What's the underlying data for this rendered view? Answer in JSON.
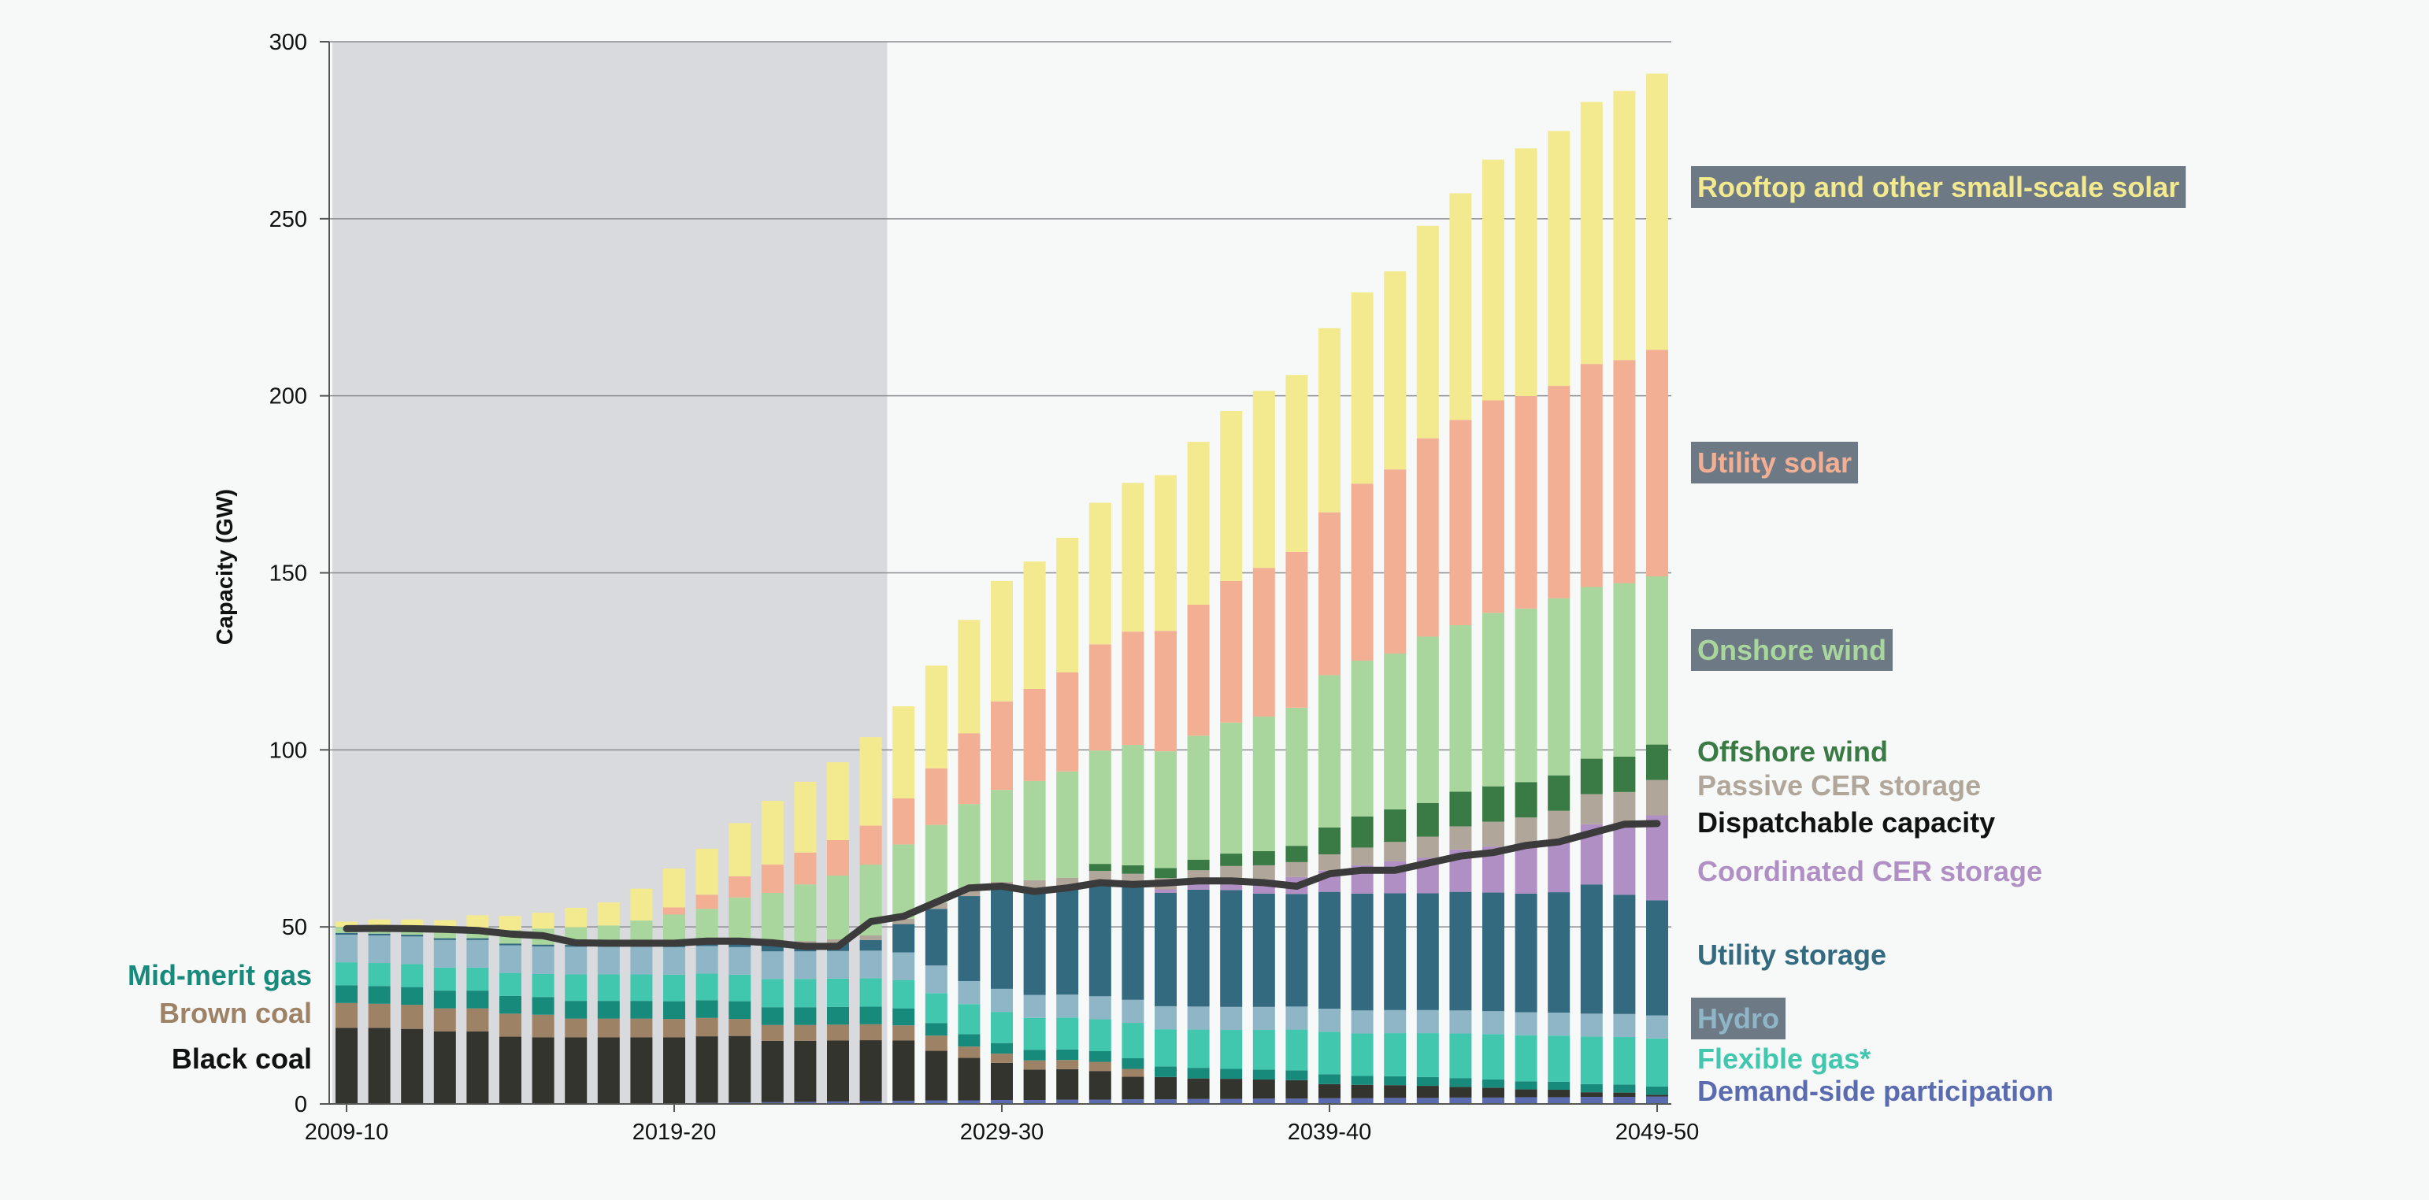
{
  "chart_data": {
    "type": "bar",
    "stacked": true,
    "ylabel": "Capacity (GW)",
    "ylim": [
      0,
      300
    ],
    "yticks": [
      0,
      50,
      100,
      150,
      200,
      250,
      300
    ],
    "xticks": [
      "2009-10",
      "2019-20",
      "2029-30",
      "2039-40",
      "2049-50"
    ],
    "categories": [
      "2009-10",
      "2010-11",
      "2011-12",
      "2012-13",
      "2013-14",
      "2014-15",
      "2015-16",
      "2016-17",
      "2017-18",
      "2018-19",
      "2019-20",
      "2020-21",
      "2021-22",
      "2022-23",
      "2023-24",
      "2024-25",
      "2025-26",
      "2026-27",
      "2027-28",
      "2028-29",
      "2029-30",
      "2030-31",
      "2031-32",
      "2032-33",
      "2033-34",
      "2034-35",
      "2035-36",
      "2036-37",
      "2037-38",
      "2038-39",
      "2039-40",
      "2040-41",
      "2041-42",
      "2042-43",
      "2043-44",
      "2044-45",
      "2045-46",
      "2046-47",
      "2047-48",
      "2048-49",
      "2049-50"
    ],
    "historical_range": [
      "2009-10",
      "2025-26"
    ],
    "series": [
      {
        "name": "Demand-side participation",
        "color": "#5a6bb0",
        "values": [
          0,
          0,
          0,
          0,
          0,
          0,
          0,
          0,
          0,
          0,
          0,
          0.3,
          0.4,
          0.5,
          0.6,
          0.7,
          0.8,
          0.9,
          1,
          1,
          1.1,
          1.1,
          1.2,
          1.2,
          1.3,
          1.3,
          1.4,
          1.4,
          1.5,
          1.5,
          1.6,
          1.6,
          1.7,
          1.7,
          1.8,
          1.8,
          1.9,
          1.9,
          2,
          2,
          2.1
        ]
      },
      {
        "name": "Black coal",
        "color": "#34342f",
        "values": [
          21.5,
          21.5,
          21.2,
          20.5,
          20.5,
          19,
          18.8,
          18.8,
          18.8,
          18.8,
          18.8,
          18.8,
          18.8,
          17.3,
          17.2,
          17.2,
          17.2,
          17,
          14,
          12,
          10.5,
          8.6,
          8.6,
          8.1,
          6.4,
          6.3,
          5.8,
          5.7,
          5.4,
          5.2,
          4,
          3.8,
          3.6,
          3.4,
          3,
          2.8,
          2.2,
          2.1,
          1.3,
          1.2,
          0.5
        ]
      },
      {
        "name": "Brown coal",
        "color": "#9e8266",
        "values": [
          7,
          6.8,
          6.8,
          6.5,
          6.5,
          6.5,
          6.4,
          5.3,
          5.3,
          5.3,
          5.2,
          5.2,
          4.8,
          4.5,
          4.5,
          4.5,
          4.5,
          4.3,
          4.3,
          3.2,
          2.6,
          2.6,
          2.6,
          2.6,
          2.2,
          0,
          0,
          0,
          0,
          0,
          0,
          0,
          0,
          0,
          0,
          0,
          0,
          0,
          0,
          0,
          0
        ]
      },
      {
        "name": "Mid-merit gas",
        "color": "#178a7c",
        "values": [
          5,
          5,
          5,
          5,
          5,
          5,
          5,
          5,
          5,
          5,
          5,
          5,
          5,
          5,
          5,
          5,
          5,
          4.8,
          3.5,
          3.5,
          3,
          3,
          3,
          3,
          3,
          3,
          3,
          2.8,
          2.8,
          2.8,
          2.8,
          2.5,
          2.5,
          2.5,
          2.5,
          2.3,
          2.3,
          2.3,
          2.3,
          2.3,
          2.3
        ]
      },
      {
        "name": "Flexible gas*",
        "color": "#42c7af",
        "values": [
          6.5,
          6.5,
          6.5,
          6.5,
          6.5,
          6.5,
          6.5,
          7.5,
          7.5,
          7.5,
          7.5,
          7.5,
          7.5,
          8,
          8,
          8,
          8,
          8,
          8.5,
          8.5,
          8.8,
          9,
          9,
          9,
          10,
          10.5,
          10.8,
          11,
          11.2,
          11.5,
          12,
          12,
          12.2,
          12.4,
          12.6,
          12.8,
          13,
          13,
          13.4,
          13.4,
          13.6
        ]
      },
      {
        "name": "Hydro",
        "color": "#8fb6c7",
        "values": [
          7.8,
          7.8,
          7.8,
          7.8,
          7.8,
          7.8,
          7.8,
          7.8,
          7.8,
          7.8,
          7.8,
          7.8,
          7.8,
          7.8,
          7.8,
          7.8,
          7.8,
          7.8,
          7.8,
          6.5,
          6.5,
          6.5,
          6.5,
          6.5,
          6.5,
          6.5,
          6.5,
          6.5,
          6.5,
          6.5,
          6.5,
          6.5,
          6.5,
          6.5,
          6.5,
          6.5,
          6.5,
          6.5,
          6.5,
          6.5,
          6.5
        ]
      },
      {
        "name": "Utility storage",
        "color": "#336a80",
        "values": [
          0.5,
          0.5,
          0.5,
          0.5,
          0.5,
          0.5,
          0.5,
          0.5,
          0.5,
          0.8,
          1,
          1.2,
          1.5,
          1.8,
          2,
          2.2,
          3,
          8,
          16,
          24,
          28,
          30,
          30,
          32,
          31.8,
          32,
          33,
          33,
          32,
          31.8,
          33,
          33,
          33,
          33,
          33.5,
          33.5,
          33.5,
          34,
          36.5,
          33.7,
          32.5
        ]
      },
      {
        "name": "Coordinated CER storage",
        "color": "#b08fc4",
        "values": [
          0,
          0,
          0,
          0,
          0,
          0,
          0,
          0,
          0,
          0,
          0,
          0,
          0,
          0,
          0,
          0,
          0,
          0,
          0,
          0,
          0,
          0,
          0.4,
          0.6,
          0.8,
          1,
          2,
          3,
          4,
          4.8,
          6,
          8,
          9,
          10,
          12,
          13,
          14,
          15,
          17,
          20,
          24
        ]
      },
      {
        "name": "Passive CER storage",
        "color": "#b0a699",
        "values": [
          0,
          0,
          0,
          0,
          0,
          0,
          0,
          0,
          0,
          0.1,
          0.2,
          0.3,
          0.5,
          0.7,
          0.9,
          1.1,
          1.3,
          1.5,
          1.7,
          2,
          2.2,
          2.4,
          2.6,
          2.8,
          3,
          3.2,
          3.5,
          3.8,
          4,
          4.2,
          4.6,
          5,
          5.5,
          6,
          6.5,
          7,
          7.5,
          8,
          8.5,
          9,
          10
        ]
      },
      {
        "name": "Offshore wind",
        "color": "#3a7a45",
        "values": [
          0,
          0,
          0,
          0,
          0,
          0,
          0,
          0,
          0,
          0,
          0,
          0,
          0,
          0,
          0,
          0,
          0,
          0,
          0,
          0,
          0,
          0,
          0,
          2,
          2.4,
          2.8,
          3,
          3.5,
          4,
          4.6,
          7.6,
          8.8,
          9.2,
          9.5,
          9.8,
          10,
          10,
          10,
          10,
          10,
          10
        ]
      },
      {
        "name": "Onshore wind",
        "color": "#a8d69c",
        "values": [
          1.7,
          2,
          2,
          2.3,
          3,
          3.8,
          4.5,
          5,
          5.5,
          6.5,
          8,
          9,
          12,
          14,
          16,
          18,
          20,
          21,
          22,
          24,
          26,
          28,
          30,
          32,
          34,
          33,
          35,
          37,
          38,
          39,
          43,
          44,
          44,
          47,
          47,
          49,
          49,
          50,
          48.5,
          49,
          47.5
        ]
      },
      {
        "name": "Utility solar",
        "color": "#f2af94",
        "values": [
          0,
          0,
          0,
          0,
          0,
          0,
          0,
          0,
          0,
          0,
          2,
          4,
          6,
          8,
          9,
          10,
          11,
          13,
          16,
          20,
          25,
          26,
          28,
          30,
          32,
          34,
          37,
          40,
          42,
          44,
          46,
          50,
          52,
          56,
          58,
          60,
          60,
          60,
          63,
          63,
          64
        ]
      },
      {
        "name": "Rooftop and other small-scale solar",
        "color": "#f3ea8f",
        "values": [
          1.5,
          2,
          2.3,
          2.8,
          3.5,
          4,
          4.5,
          5.5,
          6.5,
          9,
          11,
          13,
          15,
          18,
          20,
          22,
          25,
          26,
          29,
          32,
          34,
          36,
          38,
          40,
          42,
          44,
          46,
          48,
          50,
          50,
          52,
          54,
          56,
          60,
          64,
          68,
          70,
          72,
          74,
          76,
          78
        ]
      }
    ],
    "line": {
      "name": "Dispatchable capacity",
      "color": "#3b3b3b",
      "values": [
        49.5,
        49.6,
        49.5,
        49.3,
        49,
        48,
        47.5,
        45.5,
        45.4,
        45.4,
        45.4,
        46,
        46,
        45.5,
        44.5,
        44.5,
        51.5,
        53,
        57,
        61,
        61.5,
        60,
        61,
        62.5,
        62,
        62.4,
        63,
        63,
        62.5,
        61.5,
        65,
        66,
        66,
        68,
        70,
        71,
        73,
        74,
        76.5,
        79,
        79.2
      ]
    },
    "labels": [
      {
        "text": "Rooftop and other small-scale solar",
        "color": "#f3ea8f",
        "boxed": true
      },
      {
        "text": "Utility solar",
        "color": "#f2af94",
        "boxed": true
      },
      {
        "text": "Onshore wind",
        "color": "#a8d69c",
        "boxed": true
      },
      {
        "text": "Offshore wind",
        "color": "#3a7a45",
        "boxed": false
      },
      {
        "text": "Passive CER storage",
        "color": "#b0a699",
        "boxed": false
      },
      {
        "text": "Dispatchable capacity",
        "color": "#111111",
        "boxed": false
      },
      {
        "text": "Coordinated CER storage",
        "color": "#b08fc4",
        "boxed": false
      },
      {
        "text": "Utility storage",
        "color": "#336a80",
        "boxed": false
      },
      {
        "text": "Hydro",
        "color": "#8fb6c7",
        "boxed": true
      },
      {
        "text": "Flexible gas*",
        "color": "#42c7af",
        "boxed": false
      },
      {
        "text": "Demand-side participation",
        "color": "#5a6bb0",
        "boxed": false
      },
      {
        "text": "Mid-merit gas",
        "color": "#178a7c",
        "boxed": false
      },
      {
        "text": "Brown coal",
        "color": "#9e8266",
        "boxed": false
      },
      {
        "text": "Black coal",
        "color": "#111111",
        "boxed": false
      }
    ]
  }
}
